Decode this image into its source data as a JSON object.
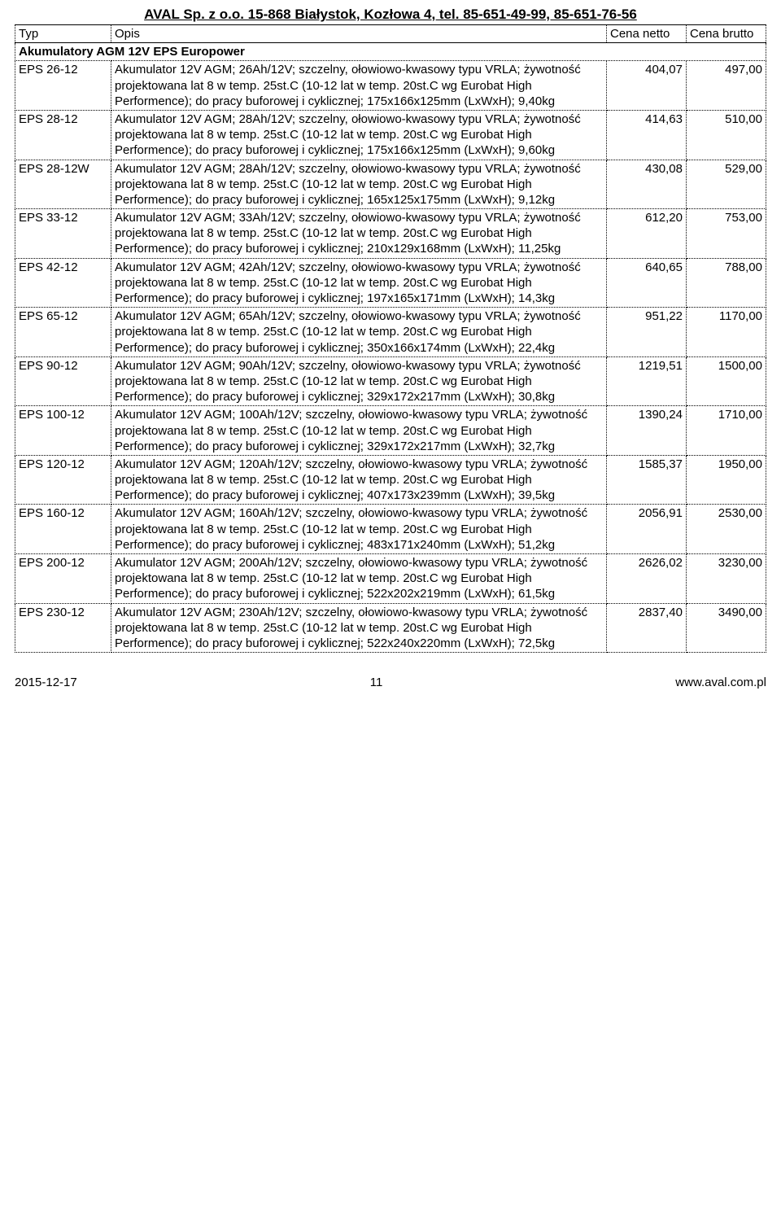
{
  "header": "AVAL Sp. z o.o. 15-868 Białystok, Kozłowa 4,  tel. 85-651-49-99, 85-651-76-56",
  "columns": {
    "typ": "Typ",
    "opis": "Opis",
    "netto": "Cena netto",
    "brutto": "Cena brutto"
  },
  "section_title": "Akumulatory AGM 12V EPS Europower",
  "rows": [
    {
      "typ": "EPS 26-12",
      "opis": "Akumulator 12V AGM; 26Ah/12V; szczelny, ołowiowo-kwasowy typu VRLA; żywotność projektowana lat 8 w temp. 25st.C (10-12 lat w temp. 20st.C wg Eurobat High Performence); do pracy buforowej i cyklicznej; 175x166x125mm (LxWxH); 9,40kg",
      "netto": "404,07",
      "brutto": "497,00"
    },
    {
      "typ": "EPS 28-12",
      "opis": "Akumulator 12V AGM; 28Ah/12V; szczelny, ołowiowo-kwasowy typu VRLA; żywotność projektowana lat 8 w temp. 25st.C (10-12 lat w temp. 20st.C wg Eurobat High Performence); do pracy buforowej i cyklicznej; 175x166x125mm (LxWxH); 9,60kg",
      "netto": "414,63",
      "brutto": "510,00"
    },
    {
      "typ": "EPS 28-12W",
      "opis": "Akumulator 12V AGM; 28Ah/12V; szczelny, ołowiowo-kwasowy typu VRLA; żywotność projektowana lat 8 w temp. 25st.C (10-12 lat w temp. 20st.C wg Eurobat High Performence); do pracy buforowej i cyklicznej; 165x125x175mm (LxWxH); 9,12kg",
      "netto": "430,08",
      "brutto": "529,00"
    },
    {
      "typ": "EPS 33-12",
      "opis": "Akumulator 12V AGM; 33Ah/12V; szczelny, ołowiowo-kwasowy typu VRLA; żywotność projektowana lat 8 w temp. 25st.C (10-12 lat w temp. 20st.C wg Eurobat High Performence); do pracy buforowej i cyklicznej; 210x129x168mm (LxWxH); 11,25kg",
      "netto": "612,20",
      "brutto": "753,00"
    },
    {
      "typ": "EPS 42-12",
      "opis": "Akumulator 12V AGM; 42Ah/12V; szczelny, ołowiowo-kwasowy typu VRLA; żywotność projektowana lat 8 w temp. 25st.C (10-12 lat w temp. 20st.C wg Eurobat High Performence); do pracy buforowej i cyklicznej; 197x165x171mm (LxWxH); 14,3kg",
      "netto": "640,65",
      "brutto": "788,00"
    },
    {
      "typ": "EPS 65-12",
      "opis": "Akumulator 12V AGM; 65Ah/12V; szczelny, ołowiowo-kwasowy typu VRLA; żywotność projektowana lat 8 w temp. 25st.C (10-12 lat w temp. 20st.C wg Eurobat High Performence); do pracy buforowej i cyklicznej; 350x166x174mm (LxWxH); 22,4kg",
      "netto": "951,22",
      "brutto": "1170,00"
    },
    {
      "typ": "EPS 90-12",
      "opis": "Akumulator 12V AGM; 90Ah/12V; szczelny, ołowiowo-kwasowy typu VRLA; żywotność projektowana lat 8 w temp. 25st.C (10-12 lat w temp. 20st.C wg Eurobat High Performence); do pracy buforowej i cyklicznej; 329x172x217mm (LxWxH); 30,8kg",
      "netto": "1219,51",
      "brutto": "1500,00"
    },
    {
      "typ": "EPS 100-12",
      "opis": "Akumulator 12V AGM; 100Ah/12V; szczelny, ołowiowo-kwasowy typu VRLA; żywotność projektowana lat 8 w temp. 25st.C (10-12 lat w temp. 20st.C wg Eurobat High Performence); do pracy buforowej i cyklicznej; 329x172x217mm (LxWxH); 32,7kg",
      "netto": "1390,24",
      "brutto": "1710,00"
    },
    {
      "typ": "EPS 120-12",
      "opis": "Akumulator 12V AGM; 120Ah/12V; szczelny, ołowiowo-kwasowy typu VRLA; żywotność projektowana lat 8 w temp. 25st.C (10-12 lat w temp. 20st.C wg Eurobat High Performence); do pracy buforowej i cyklicznej; 407x173x239mm (LxWxH); 39,5kg",
      "netto": "1585,37",
      "brutto": "1950,00"
    },
    {
      "typ": "EPS 160-12",
      "opis": "Akumulator 12V AGM; 160Ah/12V; szczelny, ołowiowo-kwasowy typu VRLA; żywotność projektowana lat 8 w temp. 25st.C (10-12 lat w temp. 20st.C wg Eurobat High Performence); do pracy buforowej i cyklicznej; 483x171x240mm (LxWxH); 51,2kg",
      "netto": "2056,91",
      "brutto": "2530,00"
    },
    {
      "typ": "EPS 200-12",
      "opis": "Akumulator 12V AGM; 200Ah/12V; szczelny, ołowiowo-kwasowy typu VRLA; żywotność projektowana lat 8 w temp. 25st.C (10-12 lat w temp. 20st.C wg Eurobat High Performence); do pracy buforowej i cyklicznej; 522x202x219mm (LxWxH); 61,5kg",
      "netto": "2626,02",
      "brutto": "3230,00"
    },
    {
      "typ": "EPS 230-12",
      "opis": "Akumulator 12V AGM; 230Ah/12V; szczelny, ołowiowo-kwasowy typu VRLA; żywotność projektowana lat 8 w temp. 25st.C (10-12 lat w temp. 20st.C wg Eurobat High Performence); do pracy buforowej i cyklicznej; 522x240x220mm (LxWxH); 72,5kg",
      "netto": "2837,40",
      "brutto": "3490,00"
    }
  ],
  "footer": {
    "date": "2015-12-17",
    "page": "11",
    "url": "www.aval.com.pl"
  }
}
